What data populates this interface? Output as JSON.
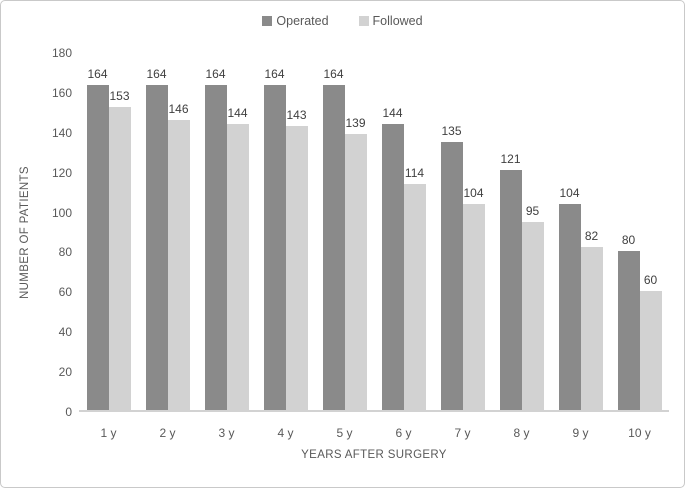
{
  "chart_data": {
    "type": "bar",
    "title": "",
    "categories": [
      "1 y",
      "2 y",
      "3 y",
      "4 y",
      "5 y",
      "6 y",
      "7 y",
      "8 y",
      "9 y",
      "10 y"
    ],
    "series": [
      {
        "name": "Operated",
        "color": "#8a8a8a",
        "values": [
          164,
          164,
          164,
          164,
          164,
          144,
          135,
          121,
          104,
          80
        ]
      },
      {
        "name": "Followed",
        "color": "#d2d2d2",
        "values": [
          153,
          146,
          144,
          143,
          139,
          114,
          104,
          95,
          82,
          60
        ]
      }
    ],
    "xlabel": "YEARS AFTER SURGERY",
    "ylabel": "NUMBER OF PATIENTS",
    "ylim": [
      0,
      180
    ],
    "yticks": [
      0,
      20,
      40,
      60,
      80,
      100,
      120,
      140,
      160,
      180
    ],
    "grid": false,
    "legend_position": "top",
    "data_labels": true,
    "colors": {
      "axis_line": "#d2d2d2",
      "axis_text": "#595959",
      "data_label_text": "#404040",
      "figure_border": "#c9c9c9"
    }
  }
}
